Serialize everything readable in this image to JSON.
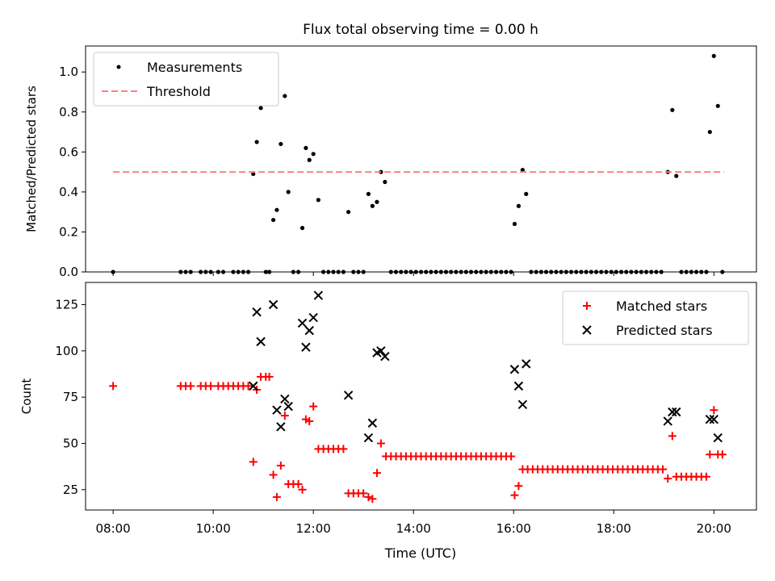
{
  "title": "Flux total observing time = 0.00 h",
  "colors": {
    "measurement": "#000000",
    "threshold": "#ff7f7f",
    "matched": "#ff0000",
    "predicted": "#000000"
  },
  "x_axis": {
    "label": "Time (UTC)",
    "range_hours": [
      7.45,
      20.85
    ],
    "ticks": [
      {
        "v": 8,
        "label": "08:00"
      },
      {
        "v": 10,
        "label": "10:00"
      },
      {
        "v": 12,
        "label": "12:00"
      },
      {
        "v": 14,
        "label": "14:00"
      },
      {
        "v": 16,
        "label": "16:00"
      },
      {
        "v": 18,
        "label": "18:00"
      },
      {
        "v": 20,
        "label": "20:00"
      }
    ]
  },
  "chart_data": [
    {
      "type": "scatter",
      "ylabel": "Matched/Predicted stars",
      "ylim": [
        0,
        1.13
      ],
      "yticks": [
        0.0,
        0.2,
        0.4,
        0.6,
        0.8,
        1.0
      ],
      "ytick_labels": [
        "0.0",
        "0.2",
        "0.4",
        "0.6",
        "0.8",
        "1.0"
      ],
      "legend": {
        "placement": "upper-left",
        "entries": [
          "Measurements",
          "Threshold"
        ]
      },
      "threshold": {
        "name": "Threshold",
        "y": 0.5,
        "x_range": [
          8.0,
          20.2
        ]
      },
      "series": [
        {
          "name": "Measurements",
          "points": [
            [
              8.0,
              0
            ],
            [
              9.35,
              0
            ],
            [
              9.45,
              0
            ],
            [
              9.55,
              0
            ],
            [
              9.75,
              0
            ],
            [
              9.85,
              0
            ],
            [
              9.95,
              0
            ],
            [
              10.1,
              0
            ],
            [
              10.2,
              0
            ],
            [
              10.4,
              0
            ],
            [
              10.5,
              0
            ],
            [
              10.6,
              0
            ],
            [
              10.7,
              0
            ],
            [
              10.8,
              0.49
            ],
            [
              10.87,
              0.65
            ],
            [
              10.95,
              0.82
            ],
            [
              11.05,
              0
            ],
            [
              11.12,
              0
            ],
            [
              11.2,
              0.26
            ],
            [
              11.27,
              0.31
            ],
            [
              11.35,
              0.64
            ],
            [
              11.43,
              0.88
            ],
            [
              11.5,
              0.4
            ],
            [
              11.6,
              0
            ],
            [
              11.7,
              0
            ],
            [
              11.78,
              0.22
            ],
            [
              11.85,
              0.62
            ],
            [
              11.92,
              0.56
            ],
            [
              12.0,
              0.59
            ],
            [
              12.1,
              0.36
            ],
            [
              12.2,
              0
            ],
            [
              12.3,
              0
            ],
            [
              12.4,
              0
            ],
            [
              12.5,
              0
            ],
            [
              12.6,
              0
            ],
            [
              12.7,
              0.3
            ],
            [
              12.8,
              0
            ],
            [
              12.9,
              0
            ],
            [
              13.0,
              0
            ],
            [
              13.1,
              0.39
            ],
            [
              13.18,
              0.33
            ],
            [
              13.27,
              0.35
            ],
            [
              13.35,
              0.5
            ],
            [
              13.43,
              0.45
            ],
            [
              13.55,
              0
            ],
            [
              13.65,
              0
            ],
            [
              13.75,
              0
            ],
            [
              13.85,
              0
            ],
            [
              13.95,
              0
            ],
            [
              14.05,
              0
            ],
            [
              14.15,
              0
            ],
            [
              14.25,
              0
            ],
            [
              14.35,
              0
            ],
            [
              14.45,
              0
            ],
            [
              14.55,
              0
            ],
            [
              14.65,
              0
            ],
            [
              14.75,
              0
            ],
            [
              14.85,
              0
            ],
            [
              14.95,
              0
            ],
            [
              15.05,
              0
            ],
            [
              15.15,
              0
            ],
            [
              15.25,
              0
            ],
            [
              15.35,
              0
            ],
            [
              15.45,
              0
            ],
            [
              15.55,
              0
            ],
            [
              15.65,
              0
            ],
            [
              15.75,
              0
            ],
            [
              15.85,
              0
            ],
            [
              15.95,
              0
            ],
            [
              16.02,
              0.24
            ],
            [
              16.1,
              0.33
            ],
            [
              16.18,
              0.51
            ],
            [
              16.25,
              0.39
            ],
            [
              16.35,
              0
            ],
            [
              16.45,
              0
            ],
            [
              16.55,
              0
            ],
            [
              16.65,
              0
            ],
            [
              16.75,
              0
            ],
            [
              16.85,
              0
            ],
            [
              16.95,
              0
            ],
            [
              17.05,
              0
            ],
            [
              17.15,
              0
            ],
            [
              17.25,
              0
            ],
            [
              17.35,
              0
            ],
            [
              17.45,
              0
            ],
            [
              17.55,
              0
            ],
            [
              17.65,
              0
            ],
            [
              17.75,
              0
            ],
            [
              17.85,
              0
            ],
            [
              17.95,
              0
            ],
            [
              18.05,
              0
            ],
            [
              18.15,
              0
            ],
            [
              18.25,
              0
            ],
            [
              18.35,
              0
            ],
            [
              18.45,
              0
            ],
            [
              18.55,
              0
            ],
            [
              18.65,
              0
            ],
            [
              18.75,
              0
            ],
            [
              18.85,
              0
            ],
            [
              18.95,
              0
            ],
            [
              19.08,
              0.5
            ],
            [
              19.17,
              0.81
            ],
            [
              19.25,
              0.48
            ],
            [
              19.35,
              0
            ],
            [
              19.45,
              0
            ],
            [
              19.55,
              0
            ],
            [
              19.65,
              0
            ],
            [
              19.75,
              0
            ],
            [
              19.85,
              0
            ],
            [
              19.92,
              0.7
            ],
            [
              20.0,
              1.08
            ],
            [
              20.08,
              0.83
            ],
            [
              20.17,
              0
            ]
          ]
        }
      ]
    },
    {
      "type": "scatter",
      "ylabel": "Count",
      "ylim": [
        14,
        137
      ],
      "yticks": [
        25,
        50,
        75,
        100,
        125
      ],
      "ytick_labels": [
        "25",
        "50",
        "75",
        "100",
        "125"
      ],
      "legend": {
        "placement": "upper-right",
        "entries": [
          "Matched stars",
          "Predicted stars"
        ]
      },
      "series": [
        {
          "name": "Matched stars",
          "marker": "plus",
          "points": [
            [
              8.0,
              81
            ],
            [
              9.35,
              81
            ],
            [
              9.45,
              81
            ],
            [
              9.55,
              81
            ],
            [
              9.75,
              81
            ],
            [
              9.85,
              81
            ],
            [
              9.95,
              81
            ],
            [
              10.1,
              81
            ],
            [
              10.2,
              81
            ],
            [
              10.3,
              81
            ],
            [
              10.4,
              81
            ],
            [
              10.5,
              81
            ],
            [
              10.6,
              81
            ],
            [
              10.7,
              81
            ],
            [
              10.8,
              40
            ],
            [
              10.87,
              79
            ],
            [
              10.95,
              86
            ],
            [
              11.05,
              86
            ],
            [
              11.12,
              86
            ],
            [
              11.2,
              33
            ],
            [
              11.27,
              21
            ],
            [
              11.35,
              38
            ],
            [
              11.43,
              65
            ],
            [
              11.5,
              28
            ],
            [
              11.6,
              28
            ],
            [
              11.7,
              28
            ],
            [
              11.78,
              25
            ],
            [
              11.85,
              63
            ],
            [
              11.92,
              62
            ],
            [
              12.0,
              70
            ],
            [
              12.1,
              47
            ],
            [
              12.2,
              47
            ],
            [
              12.3,
              47
            ],
            [
              12.4,
              47
            ],
            [
              12.5,
              47
            ],
            [
              12.6,
              47
            ],
            [
              12.7,
              23
            ],
            [
              12.8,
              23
            ],
            [
              12.9,
              23
            ],
            [
              13.0,
              23
            ],
            [
              13.1,
              21
            ],
            [
              13.18,
              20
            ],
            [
              13.27,
              34
            ],
            [
              13.35,
              50
            ],
            [
              13.45,
              43
            ],
            [
              13.55,
              43
            ],
            [
              13.65,
              43
            ],
            [
              13.75,
              43
            ],
            [
              13.85,
              43
            ],
            [
              13.95,
              43
            ],
            [
              14.05,
              43
            ],
            [
              14.15,
              43
            ],
            [
              14.25,
              43
            ],
            [
              14.35,
              43
            ],
            [
              14.45,
              43
            ],
            [
              14.55,
              43
            ],
            [
              14.65,
              43
            ],
            [
              14.75,
              43
            ],
            [
              14.85,
              43
            ],
            [
              14.95,
              43
            ],
            [
              15.05,
              43
            ],
            [
              15.15,
              43
            ],
            [
              15.25,
              43
            ],
            [
              15.35,
              43
            ],
            [
              15.45,
              43
            ],
            [
              15.55,
              43
            ],
            [
              15.65,
              43
            ],
            [
              15.75,
              43
            ],
            [
              15.85,
              43
            ],
            [
              15.95,
              43
            ],
            [
              16.02,
              22
            ],
            [
              16.1,
              27
            ],
            [
              16.18,
              36
            ],
            [
              16.28,
              36
            ],
            [
              16.38,
              36
            ],
            [
              16.48,
              36
            ],
            [
              16.58,
              36
            ],
            [
              16.68,
              36
            ],
            [
              16.78,
              36
            ],
            [
              16.88,
              36
            ],
            [
              16.98,
              36
            ],
            [
              17.08,
              36
            ],
            [
              17.18,
              36
            ],
            [
              17.28,
              36
            ],
            [
              17.38,
              36
            ],
            [
              17.48,
              36
            ],
            [
              17.58,
              36
            ],
            [
              17.68,
              36
            ],
            [
              17.78,
              36
            ],
            [
              17.88,
              36
            ],
            [
              17.98,
              36
            ],
            [
              18.08,
              36
            ],
            [
              18.18,
              36
            ],
            [
              18.28,
              36
            ],
            [
              18.38,
              36
            ],
            [
              18.48,
              36
            ],
            [
              18.58,
              36
            ],
            [
              18.68,
              36
            ],
            [
              18.78,
              36
            ],
            [
              18.88,
              36
            ],
            [
              18.98,
              36
            ],
            [
              19.08,
              31
            ],
            [
              19.17,
              54
            ],
            [
              19.25,
              32
            ],
            [
              19.35,
              32
            ],
            [
              19.45,
              32
            ],
            [
              19.55,
              32
            ],
            [
              19.65,
              32
            ],
            [
              19.75,
              32
            ],
            [
              19.85,
              32
            ],
            [
              19.92,
              44
            ],
            [
              20.0,
              68
            ],
            [
              20.08,
              44
            ],
            [
              20.17,
              44
            ]
          ]
        },
        {
          "name": "Predicted stars",
          "marker": "x",
          "points": [
            [
              10.8,
              81
            ],
            [
              10.87,
              121
            ],
            [
              10.95,
              105
            ],
            [
              11.2,
              125
            ],
            [
              11.27,
              68
            ],
            [
              11.35,
              59
            ],
            [
              11.43,
              74
            ],
            [
              11.5,
              70
            ],
            [
              11.78,
              115
            ],
            [
              11.85,
              102
            ],
            [
              11.92,
              111
            ],
            [
              12.0,
              118
            ],
            [
              12.1,
              130
            ],
            [
              12.7,
              76
            ],
            [
              13.1,
              53
            ],
            [
              13.18,
              61
            ],
            [
              13.27,
              99
            ],
            [
              13.35,
              100
            ],
            [
              13.43,
              97
            ],
            [
              16.02,
              90
            ],
            [
              16.1,
              81
            ],
            [
              16.18,
              71
            ],
            [
              16.25,
              93
            ],
            [
              19.08,
              62
            ],
            [
              19.17,
              67
            ],
            [
              19.25,
              67
            ],
            [
              19.92,
              63
            ],
            [
              20.0,
              63
            ],
            [
              20.08,
              53
            ]
          ]
        }
      ]
    }
  ]
}
